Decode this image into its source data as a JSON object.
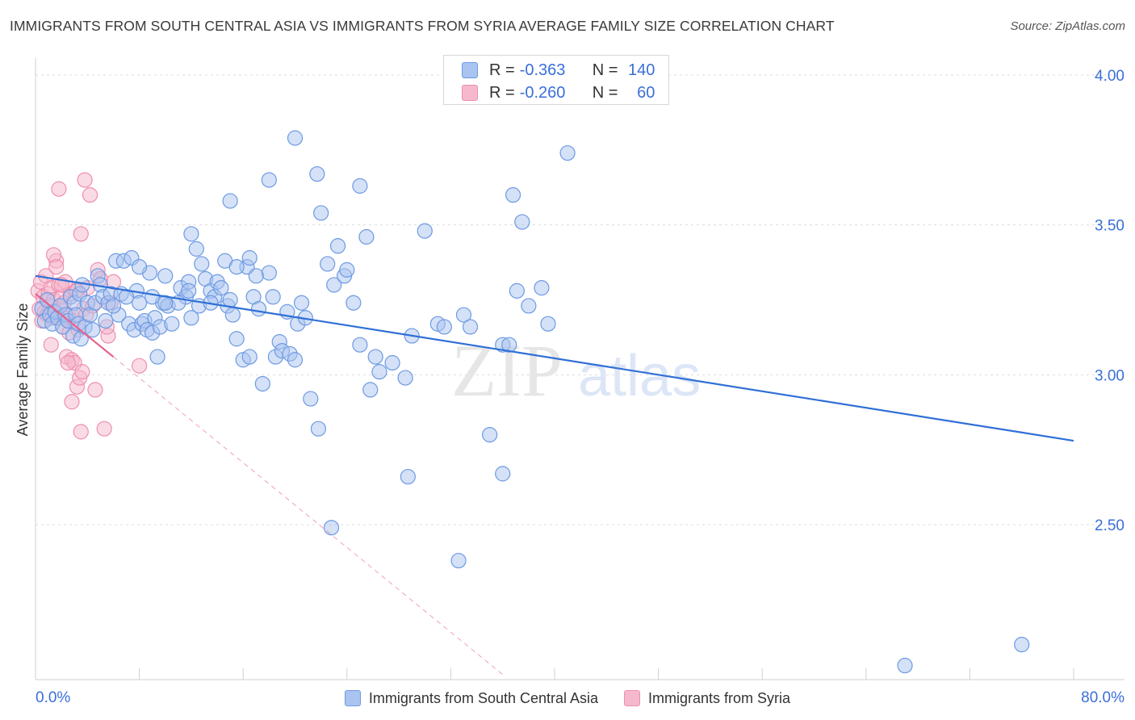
{
  "title": "IMMIGRANTS FROM SOUTH CENTRAL ASIA VS IMMIGRANTS FROM SYRIA AVERAGE FAMILY SIZE CORRELATION CHART",
  "source": "Source: ZipAtlas.com",
  "watermark": {
    "zip": "ZIP",
    "atlas": "atlas"
  },
  "colors": {
    "blue_fill": "#a9c4f0",
    "blue_stroke": "#6d9ae3",
    "blue_line": "#2f6fd6",
    "pink_fill": "#f6b8cc",
    "pink_stroke": "#ee8fae",
    "pink_line": "#e8608c",
    "tick_label": "#3a6fd8",
    "grid": "#dcdcdc"
  },
  "stats": [
    {
      "r_label": "R = ",
      "r": "-0.363",
      "n_label": "N = ",
      "n": "140"
    },
    {
      "r_label": "R = ",
      "r": "-0.260",
      "n_label": "N = ",
      "n": "60"
    }
  ],
  "chart_data": {
    "type": "scatter",
    "title": "IMMIGRANTS FROM SOUTH CENTRAL ASIA VS IMMIGRANTS FROM SYRIA AVERAGE FAMILY SIZE CORRELATION CHART",
    "xlabel": "",
    "ylabel": "Average Family Size",
    "xlim": [
      0,
      0.8
    ],
    "ylim": [
      2.0,
      4.08
    ],
    "x_tick_labels": {
      "min": "0.0%",
      "max": "80.0%"
    },
    "y_ticks": [
      2.5,
      3.0,
      3.5,
      4.0
    ],
    "y_tick_labels": [
      "2.50",
      "3.00",
      "3.50",
      "4.00"
    ],
    "grid": "horizontal dashed",
    "legend": "bottom-center",
    "series": [
      {
        "name": "Immigrants from South Central Asia",
        "color": "#a9c4f0",
        "trend": {
          "x": [
            0.0,
            0.8
          ],
          "y": [
            3.33,
            2.78
          ],
          "style": "solid"
        },
        "points": [
          [
            0.005,
            3.22
          ],
          [
            0.007,
            3.18
          ],
          [
            0.009,
            3.25
          ],
          [
            0.011,
            3.2
          ],
          [
            0.013,
            3.17
          ],
          [
            0.015,
            3.21
          ],
          [
            0.017,
            3.19
          ],
          [
            0.019,
            3.23
          ],
          [
            0.021,
            3.16
          ],
          [
            0.023,
            3.2
          ],
          [
            0.025,
            3.18
          ],
          [
            0.027,
            3.26
          ],
          [
            0.029,
            3.13
          ],
          [
            0.03,
            3.24
          ],
          [
            0.031,
            3.2
          ],
          [
            0.033,
            3.17
          ],
          [
            0.034,
            3.27
          ],
          [
            0.035,
            3.12
          ],
          [
            0.036,
            3.3
          ],
          [
            0.038,
            3.16
          ],
          [
            0.04,
            3.24
          ],
          [
            0.042,
            3.2
          ],
          [
            0.044,
            3.15
          ],
          [
            0.046,
            3.24
          ],
          [
            0.048,
            3.33
          ],
          [
            0.05,
            3.3
          ],
          [
            0.052,
            3.26
          ],
          [
            0.054,
            3.18
          ],
          [
            0.056,
            3.24
          ],
          [
            0.058,
            3.27
          ],
          [
            0.062,
            3.38
          ],
          [
            0.064,
            3.2
          ],
          [
            0.066,
            3.27
          ],
          [
            0.068,
            3.38
          ],
          [
            0.072,
            3.17
          ],
          [
            0.074,
            3.39
          ],
          [
            0.076,
            3.15
          ],
          [
            0.078,
            3.28
          ],
          [
            0.08,
            3.24
          ],
          [
            0.082,
            3.17
          ],
          [
            0.084,
            3.18
          ],
          [
            0.086,
            3.15
          ],
          [
            0.088,
            3.34
          ],
          [
            0.09,
            3.14
          ],
          [
            0.092,
            3.19
          ],
          [
            0.094,
            3.06
          ],
          [
            0.096,
            3.16
          ],
          [
            0.098,
            3.24
          ],
          [
            0.1,
            3.33
          ],
          [
            0.102,
            3.23
          ],
          [
            0.105,
            3.17
          ],
          [
            0.112,
            3.29
          ],
          [
            0.116,
            3.26
          ],
          [
            0.118,
            3.31
          ],
          [
            0.12,
            3.19
          ],
          [
            0.124,
            3.42
          ],
          [
            0.126,
            3.23
          ],
          [
            0.128,
            3.37
          ],
          [
            0.131,
            3.32
          ],
          [
            0.135,
            3.28
          ],
          [
            0.138,
            3.26
          ],
          [
            0.14,
            3.31
          ],
          [
            0.143,
            3.29
          ],
          [
            0.146,
            3.38
          ],
          [
            0.148,
            3.23
          ],
          [
            0.15,
            3.25
          ],
          [
            0.152,
            3.2
          ],
          [
            0.155,
            3.12
          ],
          [
            0.16,
            3.05
          ],
          [
            0.163,
            3.36
          ],
          [
            0.165,
            3.06
          ],
          [
            0.168,
            3.26
          ],
          [
            0.172,
            3.22
          ],
          [
            0.175,
            2.97
          ],
          [
            0.18,
            3.34
          ],
          [
            0.183,
            3.26
          ],
          [
            0.185,
            3.06
          ],
          [
            0.188,
            3.11
          ],
          [
            0.19,
            3.08
          ],
          [
            0.194,
            3.21
          ],
          [
            0.196,
            3.07
          ],
          [
            0.2,
            3.05
          ],
          [
            0.202,
            3.17
          ],
          [
            0.205,
            3.24
          ],
          [
            0.208,
            3.19
          ],
          [
            0.212,
            2.92
          ],
          [
            0.218,
            2.82
          ],
          [
            0.225,
            3.37
          ],
          [
            0.23,
            3.3
          ],
          [
            0.233,
            3.43
          ],
          [
            0.238,
            3.33
          ],
          [
            0.24,
            3.35
          ],
          [
            0.245,
            3.24
          ],
          [
            0.25,
            3.1
          ],
          [
            0.255,
            3.46
          ],
          [
            0.258,
            2.95
          ],
          [
            0.262,
            3.06
          ],
          [
            0.265,
            3.01
          ],
          [
            0.275,
            3.04
          ],
          [
            0.285,
            2.99
          ],
          [
            0.29,
            3.13
          ],
          [
            0.3,
            3.48
          ],
          [
            0.31,
            3.17
          ],
          [
            0.315,
            3.16
          ],
          [
            0.33,
            3.2
          ],
          [
            0.335,
            3.16
          ],
          [
            0.35,
            2.8
          ],
          [
            0.36,
            3.1
          ],
          [
            0.365,
            3.1
          ],
          [
            0.368,
            3.6
          ],
          [
            0.371,
            3.28
          ],
          [
            0.375,
            3.51
          ],
          [
            0.38,
            3.23
          ],
          [
            0.39,
            3.29
          ],
          [
            0.395,
            3.17
          ],
          [
            0.41,
            3.74
          ],
          [
            0.22,
            3.54
          ],
          [
            0.228,
            2.49
          ],
          [
            0.25,
            3.63
          ],
          [
            0.12,
            3.47
          ],
          [
            0.15,
            3.58
          ],
          [
            0.18,
            3.65
          ],
          [
            0.2,
            3.79
          ],
          [
            0.217,
            3.67
          ],
          [
            0.287,
            2.66
          ],
          [
            0.326,
            2.38
          ],
          [
            0.36,
            2.67
          ],
          [
            0.118,
            3.28
          ],
          [
            0.135,
            3.24
          ],
          [
            0.155,
            3.36
          ],
          [
            0.165,
            3.39
          ],
          [
            0.17,
            3.33
          ],
          [
            0.11,
            3.24
          ],
          [
            0.09,
            3.26
          ],
          [
            0.76,
            2.1
          ],
          [
            0.67,
            2.03
          ],
          [
            0.08,
            3.36
          ],
          [
            0.06,
            3.23
          ],
          [
            0.07,
            3.26
          ],
          [
            0.1,
            3.24
          ]
        ]
      },
      {
        "name": "Immigrants from Syria",
        "color": "#f6b8cc",
        "trend": {
          "x": [
            0.0,
            0.06
          ],
          "y": [
            3.27,
            3.06
          ],
          "style": "solid",
          "extension": {
            "x": [
              0.06,
              0.36
            ],
            "y": [
              3.06,
              2.0
            ],
            "style": "dashed"
          }
        },
        "points": [
          [
            0.002,
            3.28
          ],
          [
            0.003,
            3.22
          ],
          [
            0.004,
            3.31
          ],
          [
            0.005,
            3.18
          ],
          [
            0.006,
            3.26
          ],
          [
            0.007,
            3.21
          ],
          [
            0.008,
            3.33
          ],
          [
            0.009,
            3.2
          ],
          [
            0.01,
            3.27
          ],
          [
            0.011,
            3.23
          ],
          [
            0.012,
            3.29
          ],
          [
            0.013,
            3.19
          ],
          [
            0.014,
            3.25
          ],
          [
            0.015,
            3.21
          ],
          [
            0.016,
            3.38
          ],
          [
            0.017,
            3.2
          ],
          [
            0.018,
            3.3
          ],
          [
            0.019,
            3.22
          ],
          [
            0.02,
            3.26
          ],
          [
            0.021,
            3.16
          ],
          [
            0.022,
            3.24
          ],
          [
            0.023,
            3.31
          ],
          [
            0.024,
            3.06
          ],
          [
            0.025,
            3.2
          ],
          [
            0.026,
            3.14
          ],
          [
            0.027,
            3.27
          ],
          [
            0.028,
            3.05
          ],
          [
            0.029,
            3.18
          ],
          [
            0.03,
            3.04
          ],
          [
            0.031,
            3.28
          ],
          [
            0.032,
            2.96
          ],
          [
            0.033,
            3.15
          ],
          [
            0.034,
            2.99
          ],
          [
            0.035,
            3.47
          ],
          [
            0.036,
            3.01
          ],
          [
            0.037,
            3.22
          ],
          [
            0.038,
            3.65
          ],
          [
            0.039,
            3.2
          ],
          [
            0.04,
            3.29
          ],
          [
            0.042,
            3.6
          ],
          [
            0.044,
            3.23
          ],
          [
            0.046,
            2.95
          ],
          [
            0.048,
            3.35
          ],
          [
            0.05,
            3.32
          ],
          [
            0.035,
            2.81
          ],
          [
            0.053,
            2.82
          ],
          [
            0.056,
            3.13
          ],
          [
            0.058,
            3.24
          ],
          [
            0.06,
            3.31
          ],
          [
            0.055,
            3.16
          ],
          [
            0.012,
            3.1
          ],
          [
            0.014,
            3.4
          ],
          [
            0.016,
            3.36
          ],
          [
            0.018,
            3.62
          ],
          [
            0.02,
            3.3
          ],
          [
            0.022,
            3.19
          ],
          [
            0.025,
            3.04
          ],
          [
            0.028,
            2.91
          ],
          [
            0.032,
            3.28
          ],
          [
            0.08,
            3.03
          ]
        ]
      }
    ]
  }
}
